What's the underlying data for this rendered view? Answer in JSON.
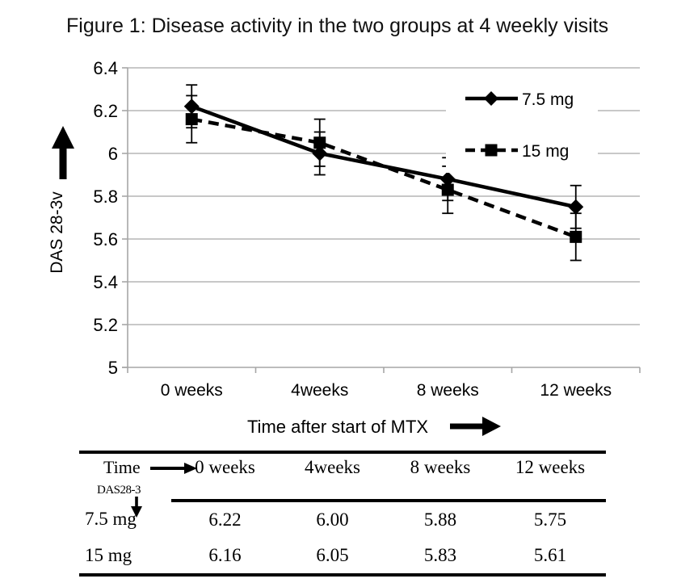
{
  "chart_data": {
    "type": "line",
    "title": "Figure 1: Disease activity in the two groups at 4 weekly visits",
    "x_categories": [
      "0 weeks",
      "4weeks",
      "8 weeks",
      "12 weeks"
    ],
    "xlabel": "Time after start of MTX",
    "ylabel": "DAS 28-3v",
    "ylim": [
      5,
      6.4
    ],
    "yticks": [
      6.4,
      6.2,
      6.0,
      5.8,
      5.6,
      5.4,
      5.2,
      5.0
    ],
    "ytick_labels": [
      "6.4",
      "6.2",
      "6",
      "5.8",
      "5.6",
      "5.4",
      "5.2",
      "5"
    ],
    "grid": true,
    "legend_position": "top-right",
    "series": [
      {
        "name": "7.5 mg",
        "marker": "diamond",
        "line_style": "solid",
        "values": [
          6.22,
          6.0,
          5.88,
          5.75
        ],
        "error_bar": 0.1
      },
      {
        "name": "15 mg",
        "marker": "square",
        "line_style": "dashed",
        "values": [
          6.16,
          6.05,
          5.83,
          5.61
        ],
        "error_bar": 0.11
      }
    ],
    "colors": {
      "series": "#000000",
      "grid": "#a6a6a6",
      "background": "#ffffff",
      "text": "#000000"
    }
  },
  "table": {
    "corner_top": "Time",
    "corner_bottom": "DAS28-3",
    "col_headers": [
      "0 weeks",
      "4weeks",
      "8 weeks",
      "12 weeks"
    ],
    "rows": [
      {
        "label": "7.5 mg",
        "values": [
          "6.22",
          "6.00",
          "5.88",
          "5.75"
        ]
      },
      {
        "label": "15 mg",
        "values": [
          "6.16",
          "6.05",
          "5.83",
          "5.61"
        ]
      }
    ]
  }
}
